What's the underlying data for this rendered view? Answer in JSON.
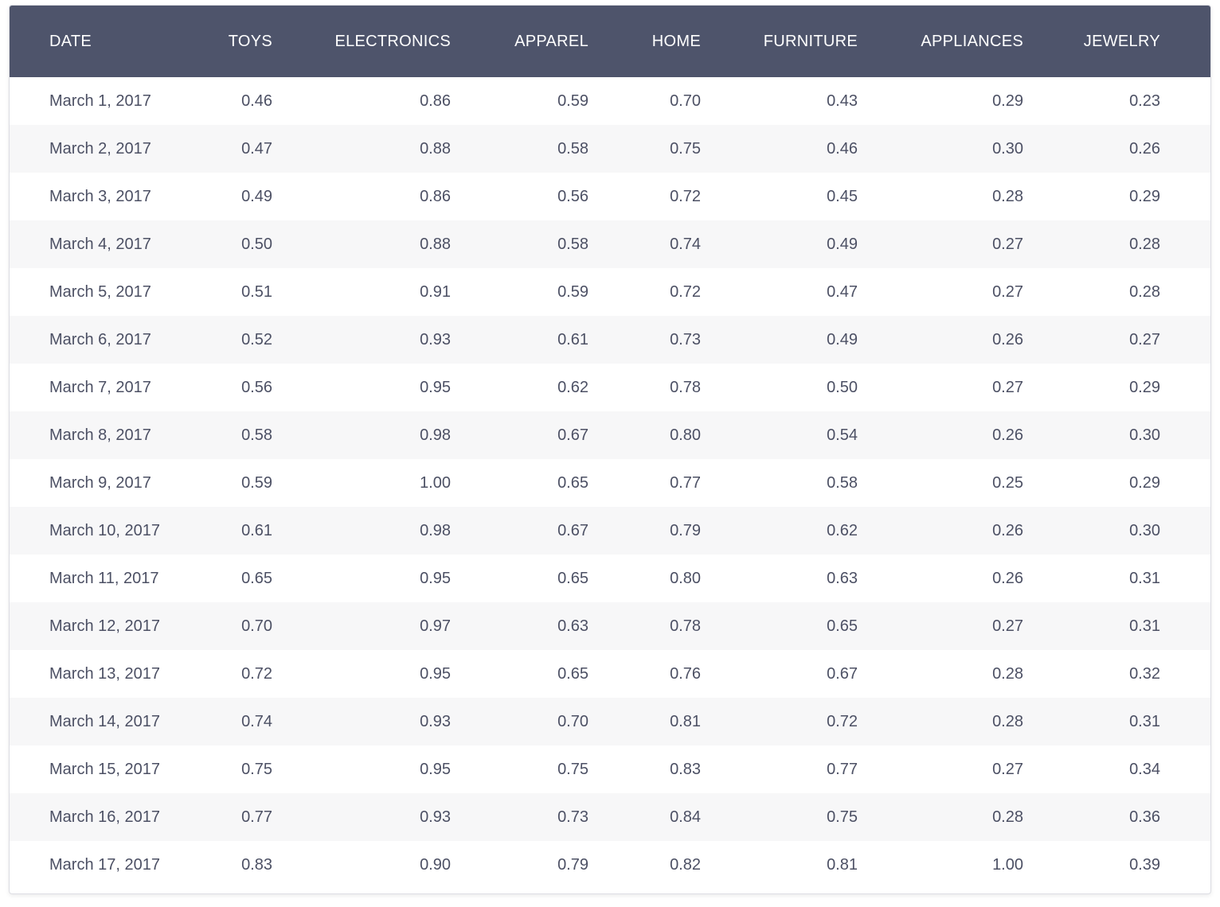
{
  "table": {
    "columns": [
      "DATE",
      "TOYS",
      "ELECTRONICS",
      "APPAREL",
      "HOME",
      "FURNITURE",
      "APPLIANCES",
      "JEWELRY"
    ],
    "rows": [
      [
        "March 1, 2017",
        "0.46",
        "0.86",
        "0.59",
        "0.70",
        "0.43",
        "0.29",
        "0.23"
      ],
      [
        "March 2, 2017",
        "0.47",
        "0.88",
        "0.58",
        "0.75",
        "0.46",
        "0.30",
        "0.26"
      ],
      [
        "March 3, 2017",
        "0.49",
        "0.86",
        "0.56",
        "0.72",
        "0.45",
        "0.28",
        "0.29"
      ],
      [
        "March 4, 2017",
        "0.50",
        "0.88",
        "0.58",
        "0.74",
        "0.49",
        "0.27",
        "0.28"
      ],
      [
        "March 5, 2017",
        "0.51",
        "0.91",
        "0.59",
        "0.72",
        "0.47",
        "0.27",
        "0.28"
      ],
      [
        "March 6, 2017",
        "0.52",
        "0.93",
        "0.61",
        "0.73",
        "0.49",
        "0.26",
        "0.27"
      ],
      [
        "March 7, 2017",
        "0.56",
        "0.95",
        "0.62",
        "0.78",
        "0.50",
        "0.27",
        "0.29"
      ],
      [
        "March 8, 2017",
        "0.58",
        "0.98",
        "0.67",
        "0.80",
        "0.54",
        "0.26",
        "0.30"
      ],
      [
        "March 9, 2017",
        "0.59",
        "1.00",
        "0.65",
        "0.77",
        "0.58",
        "0.25",
        "0.29"
      ],
      [
        "March 10, 2017",
        "0.61",
        "0.98",
        "0.67",
        "0.79",
        "0.62",
        "0.26",
        "0.30"
      ],
      [
        "March 11, 2017",
        "0.65",
        "0.95",
        "0.65",
        "0.80",
        "0.63",
        "0.26",
        "0.31"
      ],
      [
        "March 12, 2017",
        "0.70",
        "0.97",
        "0.63",
        "0.78",
        "0.65",
        "0.27",
        "0.31"
      ],
      [
        "March 13, 2017",
        "0.72",
        "0.95",
        "0.65",
        "0.76",
        "0.67",
        "0.28",
        "0.32"
      ],
      [
        "March 14, 2017",
        "0.74",
        "0.93",
        "0.70",
        "0.81",
        "0.72",
        "0.28",
        "0.31"
      ],
      [
        "March 15, 2017",
        "0.75",
        "0.95",
        "0.75",
        "0.83",
        "0.77",
        "0.27",
        "0.34"
      ],
      [
        "March 16, 2017",
        "0.77",
        "0.93",
        "0.73",
        "0.84",
        "0.75",
        "0.28",
        "0.36"
      ],
      [
        "March 17, 2017",
        "0.83",
        "0.90",
        "0.79",
        "0.82",
        "0.81",
        "1.00",
        "0.39"
      ]
    ]
  },
  "colors": {
    "header_bg": "#4e546b",
    "header_text": "#ffffff",
    "body_text": "#4c5064",
    "row_stripe": "#f7f7f8"
  }
}
